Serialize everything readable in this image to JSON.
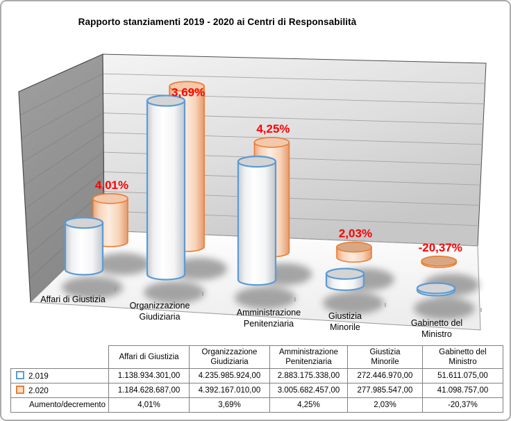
{
  "chart_data": {
    "type": "bar",
    "subtype": "3d-cylinder",
    "title": "Rapporto stanziamenti 2019 - 2020 ai Centri di Responsabilità",
    "categories": [
      "Affari di Giustizia",
      "Organizzazione Giudiziaria",
      "Amministrazione Penitenziaria",
      "Giustizia Minorile",
      "Gabinetto del Ministro"
    ],
    "categories_wrapped": [
      [
        "Affari di Giustizia"
      ],
      [
        "Organizzazione",
        "Giudiziaria"
      ],
      [
        "Amministrazione",
        "Penitenziaria"
      ],
      [
        "Giustizia",
        "Minorile"
      ],
      [
        "Gabinetto del",
        "Ministro"
      ]
    ],
    "series": [
      {
        "name": "2.019",
        "values": [
          1138934301,
          4235985924,
          2883175338,
          272446970,
          51611075
        ],
        "values_formatted": [
          "1.138.934.301,00",
          "4.235.985.924,00",
          "2.883.175.338,00",
          "272.446.970,00",
          "51.611.075,00"
        ],
        "color": "#5B9BD5",
        "swatch_fill": "#FFFFFF"
      },
      {
        "name": "2.020",
        "values": [
          1184628687,
          4392167010,
          3005682457,
          277985547,
          41098757
        ],
        "values_formatted": [
          "1.184.628.687,00",
          "4.392.167.010,00",
          "3.005.682.457,00",
          "277.985.547,00",
          "41.098.757,00"
        ],
        "color": "#ED7D31",
        "swatch_fill": "#FBE0CD"
      }
    ],
    "data_labels": {
      "values": [
        "4,01%",
        "3,69%",
        "4,25%",
        "2,03%",
        "-20,37%"
      ],
      "color": "#FF0000"
    },
    "value_axis_labels_visible": false,
    "grid": true,
    "legend_position": "table-rows"
  },
  "table": {
    "delta_label": "Aumento/decremento"
  }
}
